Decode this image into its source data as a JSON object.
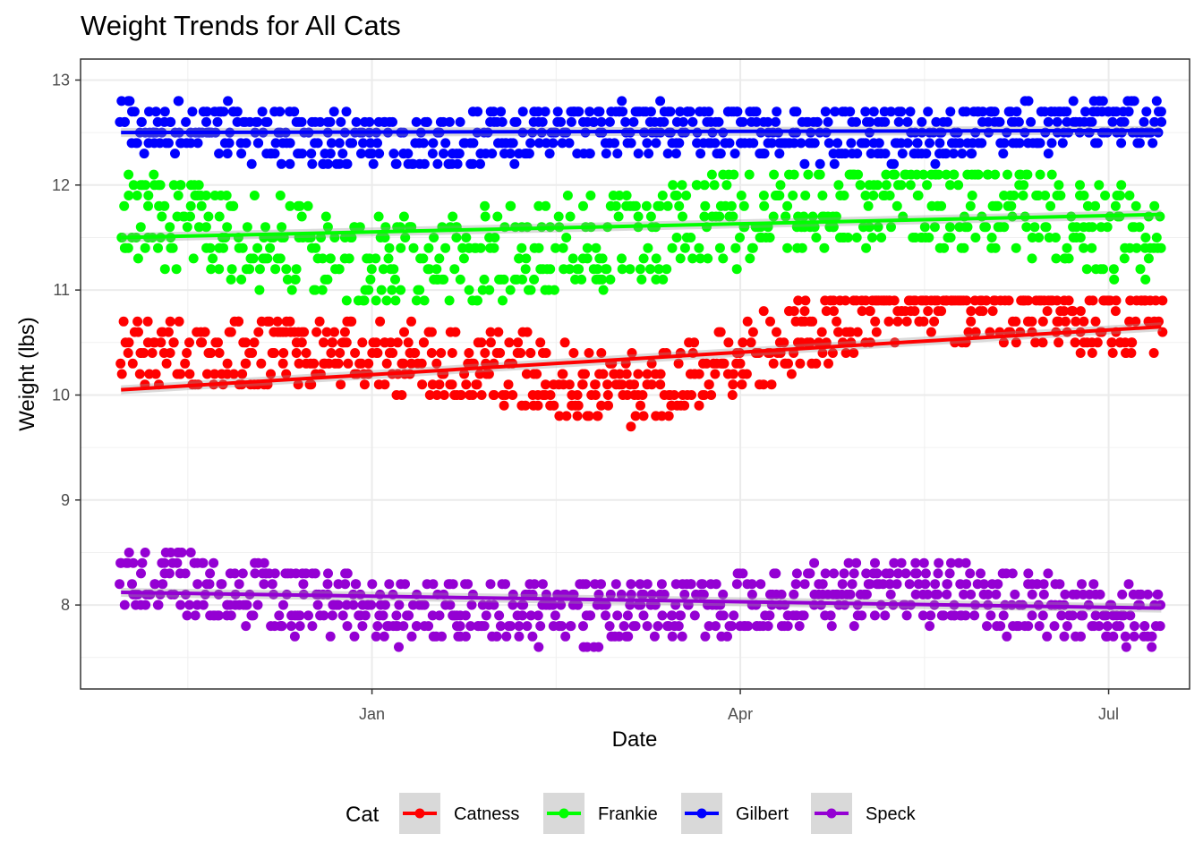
{
  "chart_data": {
    "type": "scatter",
    "title": "Weight Trends for All Cats",
    "xlabel": "Date",
    "ylabel": "Weight (lbs)",
    "x_start_date": "2023-10-31",
    "x_end_date": "2024-07-14",
    "xlim": [
      "2023-10-21",
      "2024-07-21"
    ],
    "ylim": [
      7.2,
      13.2
    ],
    "x_ticks": [
      {
        "date": "2024-01-01",
        "label": "Jan"
      },
      {
        "date": "2024-04-01",
        "label": "Apr"
      },
      {
        "date": "2024-07-01",
        "label": "Jul"
      }
    ],
    "y_ticks": [
      8,
      9,
      10,
      11,
      12,
      13
    ],
    "grid": true,
    "legend": {
      "title": "Cat",
      "position": "bottom"
    },
    "series": [
      {
        "name": "Catness",
        "color": "#ff0000",
        "trend_start": 10.05,
        "trend_end": 10.65,
        "wave": [
          0.55,
          0.35,
          -0.5,
          0.6,
          0.15
        ],
        "spread": 0.35,
        "min": 9.5,
        "max": 10.9
      },
      {
        "name": "Frankie",
        "color": "#00ff00",
        "trend_start": 11.5,
        "trend_end": 11.72,
        "wave": [
          0.4,
          -0.55,
          -0.15,
          0.45,
          -0.35
        ],
        "spread": 0.45,
        "min": 10.9,
        "max": 12.1
      },
      {
        "name": "Gilbert",
        "color": "#0000ff",
        "trend_start": 12.5,
        "trend_end": 12.52,
        "wave": [
          0.15,
          -0.2,
          0.05,
          -0.1,
          0.2
        ],
        "spread": 0.25,
        "min": 12.2,
        "max": 13.0
      },
      {
        "name": "Speck",
        "color": "#9400d3",
        "trend_start": 8.12,
        "trend_end": 7.97,
        "wave": [
          0.25,
          -0.25,
          -0.2,
          0.25,
          -0.2
        ],
        "spread": 0.3,
        "min": 7.5,
        "max": 8.9
      }
    ]
  }
}
